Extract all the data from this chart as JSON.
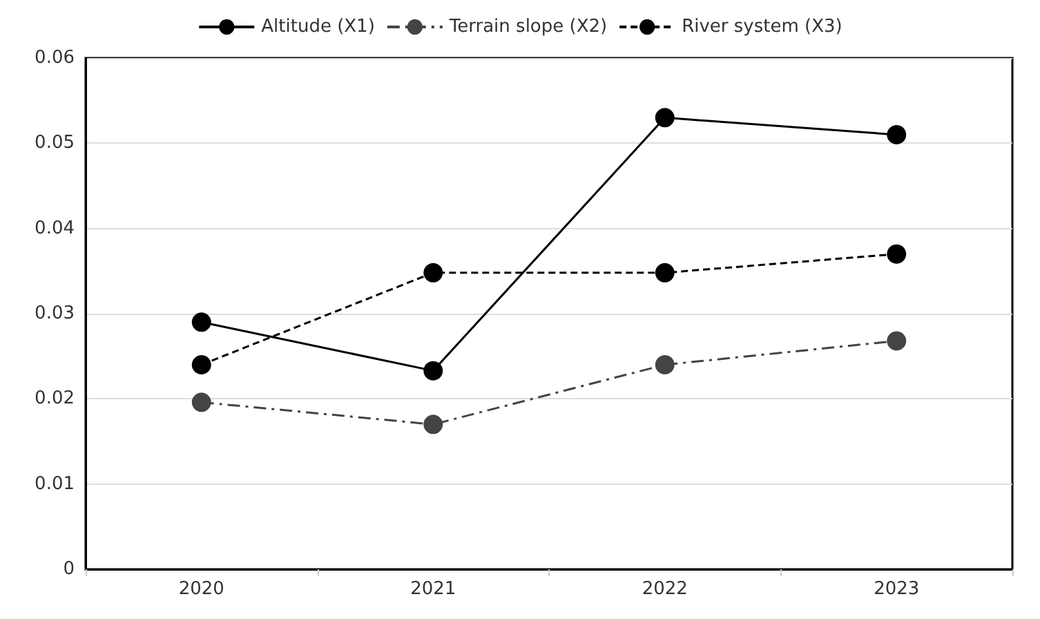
{
  "chart_data": {
    "type": "line",
    "categories": [
      "2020",
      "2021",
      "2022",
      "2023"
    ],
    "series": [
      {
        "name": "Altitude (X1)",
        "color": "#000000",
        "line_style": "solid",
        "values": [
          0.029,
          0.0233,
          0.053,
          0.051
        ]
      },
      {
        "name": "Terrain slope (X2)",
        "color": "#444444",
        "line_style": "dashdot",
        "values": [
          0.0196,
          0.017,
          0.024,
          0.0268
        ]
      },
      {
        "name": "River system (X3)",
        "color": "#000000",
        "line_style": "dashed",
        "values": [
          0.024,
          0.0348,
          0.0348,
          0.037
        ]
      }
    ],
    "ylim": [
      0,
      0.06
    ],
    "yticks": [
      0,
      0.01,
      0.02,
      0.03,
      0.04,
      0.05,
      0.06
    ],
    "grid": "y",
    "legend": "top",
    "marker": "circle"
  }
}
